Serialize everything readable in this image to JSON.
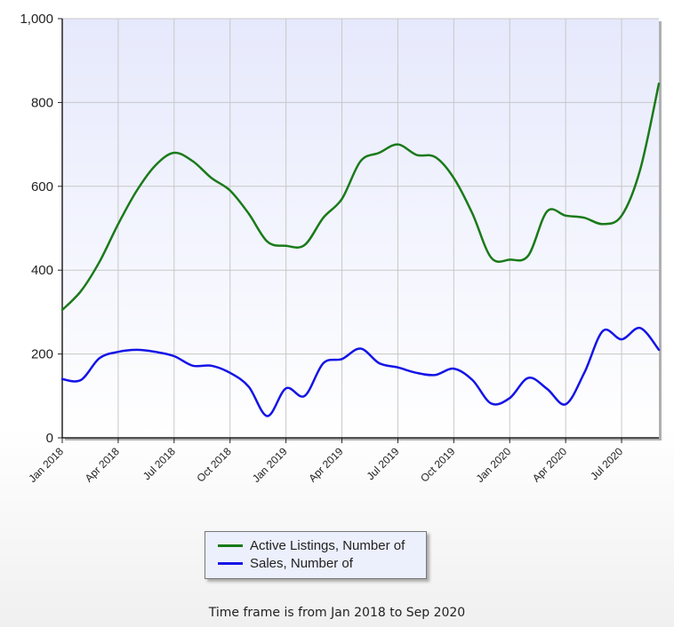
{
  "chart_data": {
    "type": "line",
    "x": [
      "Jan 2018",
      "Feb 2018",
      "Mar 2018",
      "Apr 2018",
      "May 2018",
      "Jun 2018",
      "Jul 2018",
      "Aug 2018",
      "Sep 2018",
      "Oct 2018",
      "Nov 2018",
      "Dec 2018",
      "Jan 2019",
      "Feb 2019",
      "Mar 2019",
      "Apr 2019",
      "May 2019",
      "Jun 2019",
      "Jul 2019",
      "Aug 2019",
      "Sep 2019",
      "Oct 2019",
      "Nov 2019",
      "Dec 2019",
      "Jan 2020",
      "Feb 2020",
      "Mar 2020",
      "Apr 2020",
      "May 2020",
      "Jun 2020",
      "Jul 2020",
      "Aug 2020",
      "Sep 2020"
    ],
    "xtick_labels": [
      "Jan 2018",
      "Apr 2018",
      "Jul 2018",
      "Oct 2018",
      "Jan 2019",
      "Apr 2019",
      "Jul 2019",
      "Oct 2019",
      "Jan 2020",
      "Apr 2020",
      "Jul 2020"
    ],
    "ytick_labels": [
      "0",
      "200",
      "400",
      "600",
      "800",
      "1,000"
    ],
    "ylim": [
      0,
      1000
    ],
    "grid": true,
    "series": [
      {
        "name": "Active Listings, Number of",
        "color": "#1a7a1a",
        "values": [
          305,
          350,
          420,
          510,
          590,
          650,
          680,
          660,
          620,
          590,
          535,
          468,
          458,
          460,
          525,
          570,
          660,
          680,
          700,
          675,
          670,
          620,
          535,
          430,
          425,
          435,
          540,
          530,
          525,
          510,
          530,
          640,
          845
        ]
      },
      {
        "name": "Sales, Number of",
        "color": "#1414e6",
        "values": [
          140,
          138,
          190,
          205,
          210,
          205,
          195,
          172,
          172,
          155,
          122,
          52,
          118,
          100,
          178,
          188,
          213,
          178,
          168,
          155,
          150,
          165,
          138,
          82,
          95,
          143,
          117,
          80,
          155,
          255,
          235,
          262,
          210
        ]
      }
    ],
    "legend_position": "bottom"
  },
  "caption": "Time frame is from Jan 2018 to Sep 2020"
}
